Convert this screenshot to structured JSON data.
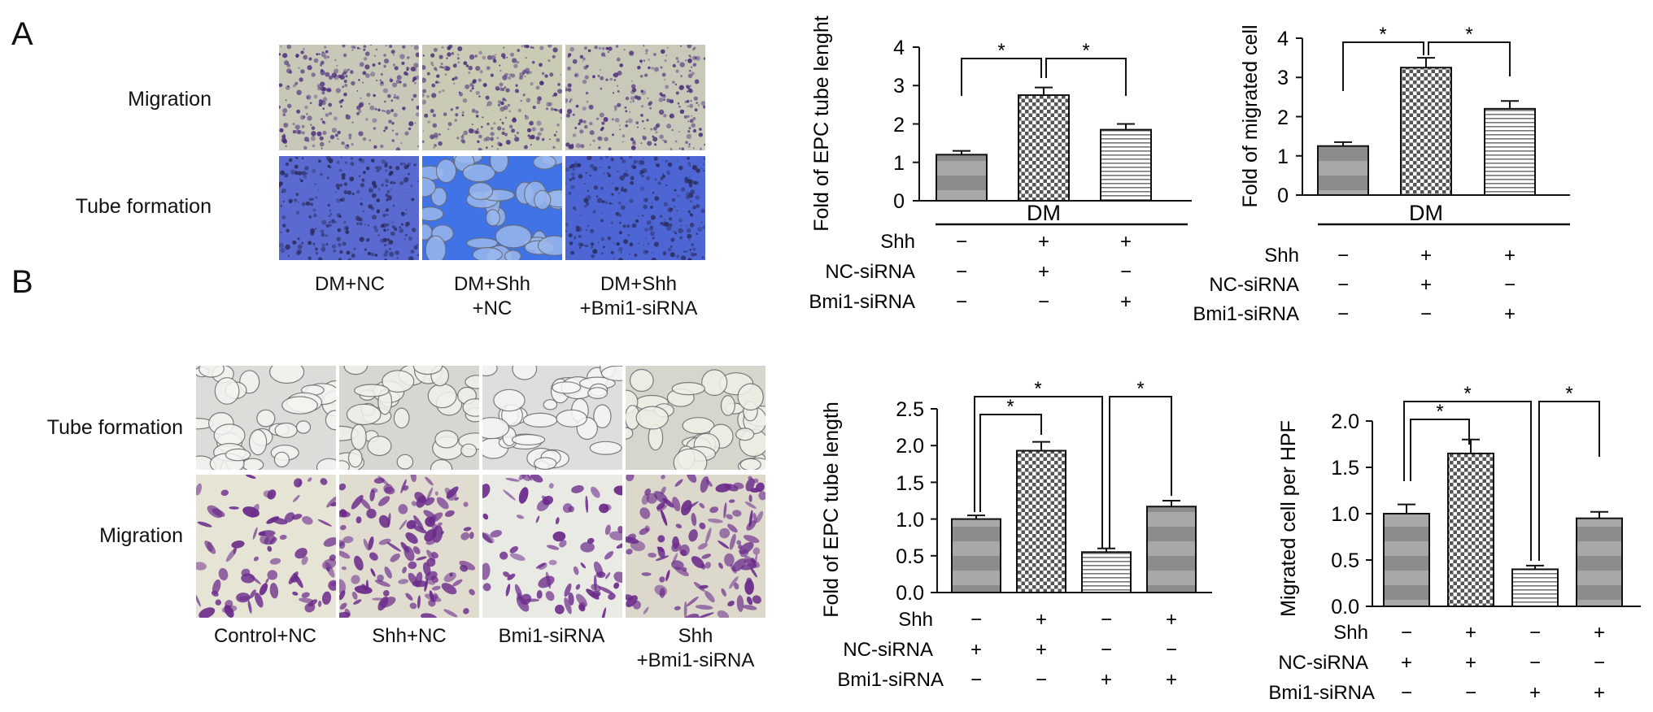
{
  "panels": {
    "A": {
      "letter": "A",
      "row_labels": [
        "Migration",
        "Tube formation"
      ],
      "captions": [
        [
          "DM+NC"
        ],
        [
          "DM+Shh",
          "+NC"
        ],
        [
          "DM+Shh",
          "+Bmi1-siRNA"
        ]
      ]
    },
    "B": {
      "letter": "B",
      "row_labels": [
        "Tube formation",
        "Migration"
      ],
      "captions": [
        [
          "Control+NC"
        ],
        [
          "Shh+NC"
        ],
        [
          "Bmi1-siRNA"
        ],
        [
          "Shh",
          "+Bmi1-siRNA"
        ]
      ]
    }
  },
  "chart_data": [
    {
      "id": "A1",
      "type": "bar",
      "ylabel": "Fold of EPC tube lenght",
      "ylim": [
        0,
        4
      ],
      "yticks": [
        "0",
        "1",
        "2",
        "3",
        "4"
      ],
      "values": [
        1.2,
        2.75,
        1.85
      ],
      "errors": [
        0.1,
        0.2,
        0.15
      ],
      "group_label": "DM",
      "row_labels": [
        "Shh",
        "NC-siRNA",
        "Bmi1-siRNA"
      ],
      "signs": [
        [
          "−",
          "+",
          "+"
        ],
        [
          "−",
          "+",
          "−"
        ],
        [
          "−",
          "−",
          "+"
        ]
      ],
      "significance": [
        {
          "from": 0,
          "to": 1,
          "label": "*"
        },
        {
          "from": 1,
          "to": 2,
          "label": "*"
        }
      ]
    },
    {
      "id": "A2",
      "type": "bar",
      "ylabel": "Fold of migrated cell",
      "ylim": [
        0,
        4
      ],
      "yticks": [
        "0",
        "1",
        "2",
        "3",
        "4"
      ],
      "values": [
        1.25,
        3.25,
        2.2
      ],
      "errors": [
        0.1,
        0.25,
        0.2
      ],
      "group_label": "DM",
      "row_labels": [
        "Shh",
        "NC-siRNA",
        "Bmi1-siRNA"
      ],
      "signs": [
        [
          "−",
          "+",
          "+"
        ],
        [
          "−",
          "+",
          "−"
        ],
        [
          "−",
          "−",
          "+"
        ]
      ],
      "significance": [
        {
          "from": 0,
          "to": 1,
          "label": "*"
        },
        {
          "from": 1,
          "to": 2,
          "label": "*"
        }
      ]
    },
    {
      "id": "B1",
      "type": "bar",
      "ylabel": "Fold of EPC tube length",
      "ylim": [
        0,
        2.5
      ],
      "yticks": [
        "0.0",
        "0.5",
        "1.0",
        "1.5",
        "2.0",
        "2.5"
      ],
      "values": [
        1.0,
        1.93,
        0.55,
        1.17
      ],
      "errors": [
        0.05,
        0.12,
        0.05,
        0.08
      ],
      "group_label": "",
      "row_labels": [
        "Shh",
        "NC-siRNA",
        "Bmi1-siRNA"
      ],
      "signs": [
        [
          "−",
          "+",
          "−",
          "+"
        ],
        [
          "+",
          "+",
          "−",
          "−"
        ],
        [
          "−",
          "−",
          "+",
          "+"
        ]
      ],
      "significance": [
        {
          "from": 0,
          "to": 1,
          "label": "*"
        },
        {
          "from": 0,
          "to": 2,
          "label": "*"
        },
        {
          "from": 2,
          "to": 3,
          "label": "*"
        }
      ]
    },
    {
      "id": "B2",
      "type": "bar",
      "ylabel": "Migrated cell per HPF",
      "ylim": [
        0,
        2.0
      ],
      "yticks": [
        "0.0",
        "0.5",
        "1.0",
        "1.5",
        "2.0"
      ],
      "values": [
        1.0,
        1.65,
        0.4,
        0.95
      ],
      "errors": [
        0.1,
        0.15,
        0.04,
        0.07
      ],
      "group_label": "",
      "row_labels": [
        "Shh",
        "NC-siRNA",
        "Bmi1-siRNA"
      ],
      "signs": [
        [
          "−",
          "+",
          "−",
          "+"
        ],
        [
          "+",
          "+",
          "−",
          "−"
        ],
        [
          "−",
          "−",
          "+",
          "+"
        ]
      ],
      "significance": [
        {
          "from": 0,
          "to": 1,
          "label": "*"
        },
        {
          "from": 0,
          "to": 2,
          "label": "*"
        },
        {
          "from": 2,
          "to": 3,
          "label": "*"
        }
      ]
    }
  ]
}
